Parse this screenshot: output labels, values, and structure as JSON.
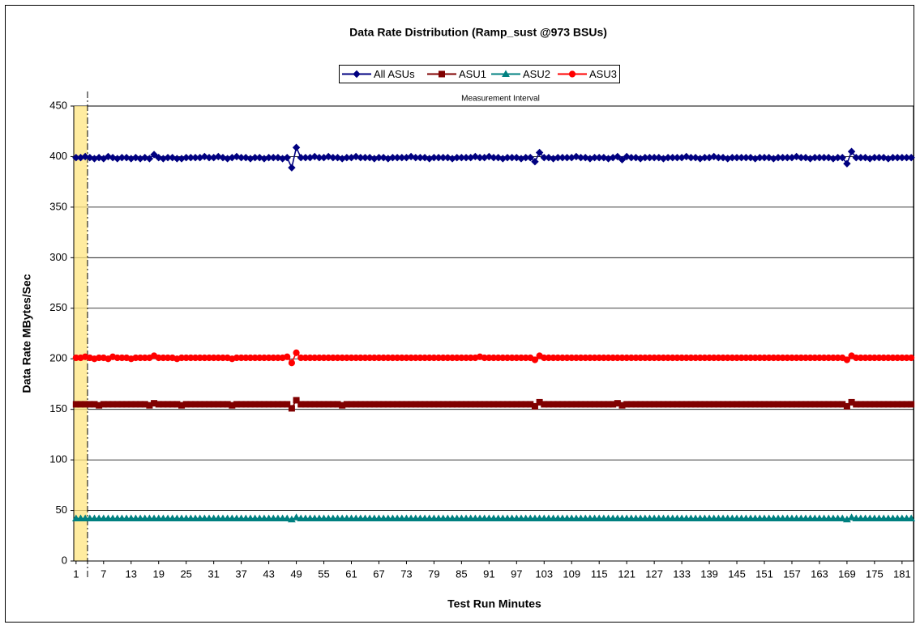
{
  "chart_data": {
    "type": "line",
    "title": "Data Rate Distribution (Ramp_sust @973 BSUs)",
    "x_label": "Test Run Minutes",
    "y_label": "Data Rate MBytes/Sec",
    "measurement_interval": {
      "label": "Measurement Interval",
      "start": 3.5
    },
    "xlim": [
      0.5,
      183.5
    ],
    "xticks": [
      1,
      7,
      13,
      19,
      25,
      31,
      37,
      43,
      49,
      55,
      61,
      67,
      73,
      79,
      85,
      91,
      97,
      103,
      109,
      115,
      121,
      127,
      133,
      139,
      145,
      151,
      157,
      163,
      169,
      175,
      181
    ],
    "ylim": [
      0,
      450
    ],
    "yticks": [
      0,
      50,
      100,
      150,
      200,
      250,
      300,
      350,
      400,
      450
    ],
    "grid": true,
    "x": [
      1,
      2,
      3,
      4,
      5,
      6,
      7,
      8,
      9,
      10,
      11,
      12,
      13,
      14,
      15,
      16,
      17,
      18,
      19,
      20,
      21,
      22,
      23,
      24,
      25,
      26,
      27,
      28,
      29,
      30,
      31,
      32,
      33,
      34,
      35,
      36,
      37,
      38,
      39,
      40,
      41,
      42,
      43,
      44,
      45,
      46,
      47,
      48,
      49,
      50,
      51,
      52,
      53,
      54,
      55,
      56,
      57,
      58,
      59,
      60,
      61,
      62,
      63,
      64,
      65,
      66,
      67,
      68,
      69,
      70,
      71,
      72,
      73,
      74,
      75,
      76,
      77,
      78,
      79,
      80,
      81,
      82,
      83,
      84,
      85,
      86,
      87,
      88,
      89,
      90,
      91,
      92,
      93,
      94,
      95,
      96,
      97,
      98,
      99,
      100,
      101,
      102,
      103,
      104,
      105,
      106,
      107,
      108,
      109,
      110,
      111,
      112,
      113,
      114,
      115,
      116,
      117,
      118,
      119,
      120,
      121,
      122,
      123,
      124,
      125,
      126,
      127,
      128,
      129,
      130,
      131,
      132,
      133,
      134,
      135,
      136,
      137,
      138,
      139,
      140,
      141,
      142,
      143,
      144,
      145,
      146,
      147,
      148,
      149,
      150,
      151,
      152,
      153,
      154,
      155,
      156,
      157,
      158,
      159,
      160,
      161,
      162,
      163,
      164,
      165,
      166,
      167,
      168,
      169,
      170,
      171,
      172,
      173,
      174,
      175,
      176,
      177,
      178,
      179,
      180,
      181,
      182,
      183
    ],
    "series": [
      {
        "name": "All ASUs",
        "color": "#000080",
        "marker": "diamond",
        "values": [
          399,
          399,
          400,
          399,
          398,
          399,
          398,
          400,
          399,
          398,
          399,
          399,
          398,
          399,
          398,
          399,
          398,
          402,
          399,
          398,
          399,
          399,
          398,
          398,
          399,
          399,
          399,
          399,
          400,
          399,
          399,
          400,
          399,
          398,
          399,
          400,
          399,
          399,
          398,
          399,
          399,
          398,
          399,
          399,
          399,
          398,
          399,
          389,
          409,
          399,
          399,
          399,
          400,
          399,
          399,
          400,
          399,
          399,
          398,
          399,
          399,
          400,
          399,
          399,
          399,
          398,
          399,
          399,
          398,
          399,
          399,
          399,
          399,
          400,
          399,
          399,
          399,
          398,
          399,
          399,
          399,
          399,
          398,
          399,
          399,
          399,
          399,
          400,
          399,
          399,
          400,
          399,
          399,
          398,
          399,
          399,
          399,
          398,
          399,
          399,
          395,
          404,
          399,
          399,
          398,
          399,
          399,
          399,
          399,
          400,
          399,
          399,
          398,
          399,
          399,
          399,
          398,
          399,
          400,
          397,
          400,
          399,
          399,
          398,
          399,
          399,
          399,
          399,
          398,
          399,
          399,
          399,
          399,
          400,
          399,
          399,
          398,
          399,
          399,
          400,
          399,
          399,
          398,
          399,
          399,
          399,
          399,
          399,
          398,
          399,
          399,
          399,
          398,
          399,
          399,
          399,
          399,
          400,
          399,
          399,
          398,
          399,
          399,
          399,
          399,
          398,
          399,
          399,
          393,
          405,
          399,
          399,
          399,
          398,
          399,
          399,
          399,
          398,
          399,
          399,
          399,
          399,
          399
        ]
      },
      {
        "name": "ASU1",
        "color": "#800000",
        "marker": "square",
        "values": [
          155,
          155,
          155,
          155,
          155,
          154,
          155,
          155,
          155,
          155,
          155,
          155,
          155,
          155,
          155,
          155,
          154,
          156,
          155,
          155,
          155,
          155,
          155,
          154,
          155,
          155,
          155,
          155,
          155,
          155,
          155,
          155,
          155,
          155,
          154,
          155,
          155,
          155,
          155,
          155,
          155,
          155,
          155,
          155,
          155,
          155,
          155,
          151,
          159,
          155,
          155,
          155,
          155,
          155,
          155,
          155,
          155,
          155,
          154,
          155,
          155,
          155,
          155,
          155,
          155,
          155,
          155,
          155,
          155,
          155,
          155,
          155,
          155,
          155,
          155,
          155,
          155,
          155,
          155,
          155,
          155,
          155,
          155,
          155,
          155,
          155,
          155,
          155,
          155,
          155,
          155,
          155,
          155,
          155,
          155,
          155,
          155,
          155,
          155,
          155,
          153,
          157,
          155,
          155,
          155,
          155,
          155,
          155,
          155,
          155,
          155,
          155,
          155,
          155,
          155,
          155,
          155,
          155,
          156,
          154,
          155,
          155,
          155,
          155,
          155,
          155,
          155,
          155,
          155,
          155,
          155,
          155,
          155,
          155,
          155,
          155,
          155,
          155,
          155,
          155,
          155,
          155,
          155,
          155,
          155,
          155,
          155,
          155,
          155,
          155,
          155,
          155,
          155,
          155,
          155,
          155,
          155,
          155,
          155,
          155,
          155,
          155,
          155,
          155,
          155,
          155,
          155,
          155,
          153,
          157,
          155,
          155,
          155,
          155,
          155,
          155,
          155,
          155,
          155,
          155,
          155,
          155,
          155
        ]
      },
      {
        "name": "ASU2",
        "color": "#008080",
        "marker": "triangle",
        "values": [
          42,
          42,
          42,
          42,
          42,
          42,
          42,
          42,
          42,
          42,
          42,
          42,
          42,
          42,
          42,
          42,
          42,
          42,
          42,
          42,
          42,
          42,
          42,
          42,
          42,
          42,
          42,
          42,
          42,
          42,
          42,
          42,
          42,
          42,
          42,
          42,
          42,
          42,
          42,
          42,
          42,
          42,
          42,
          42,
          42,
          42,
          42,
          41,
          43,
          42,
          42,
          42,
          42,
          42,
          42,
          42,
          42,
          42,
          42,
          42,
          42,
          42,
          42,
          42,
          42,
          42,
          42,
          42,
          42,
          42,
          42,
          42,
          42,
          42,
          42,
          42,
          42,
          42,
          42,
          42,
          42,
          42,
          42,
          42,
          42,
          42,
          42,
          42,
          42,
          42,
          42,
          42,
          42,
          42,
          42,
          42,
          42,
          42,
          42,
          42,
          42,
          42,
          42,
          42,
          42,
          42,
          42,
          42,
          42,
          42,
          42,
          42,
          42,
          42,
          42,
          42,
          42,
          42,
          42,
          42,
          42,
          42,
          42,
          42,
          42,
          42,
          42,
          42,
          42,
          42,
          42,
          42,
          42,
          42,
          42,
          42,
          42,
          42,
          42,
          42,
          42,
          42,
          42,
          42,
          42,
          42,
          42,
          42,
          42,
          42,
          42,
          42,
          42,
          42,
          42,
          42,
          42,
          42,
          42,
          42,
          42,
          42,
          42,
          42,
          42,
          42,
          42,
          42,
          41,
          43,
          42,
          42,
          42,
          42,
          42,
          42,
          42,
          42,
          42,
          42,
          42,
          42,
          42
        ]
      },
      {
        "name": "ASU3",
        "color": "#ff0000",
        "marker": "circle",
        "values": [
          201,
          201,
          202,
          201,
          200,
          201,
          201,
          200,
          202,
          201,
          201,
          201,
          200,
          201,
          201,
          201,
          201,
          203,
          201,
          201,
          201,
          201,
          200,
          201,
          201,
          201,
          201,
          201,
          201,
          201,
          201,
          201,
          201,
          201,
          200,
          201,
          201,
          201,
          201,
          201,
          201,
          201,
          201,
          201,
          201,
          201,
          202,
          196,
          206,
          201,
          201,
          201,
          201,
          201,
          201,
          201,
          201,
          201,
          201,
          201,
          201,
          201,
          201,
          201,
          201,
          201,
          201,
          201,
          201,
          201,
          201,
          201,
          201,
          201,
          201,
          201,
          201,
          201,
          201,
          201,
          201,
          201,
          201,
          201,
          201,
          201,
          201,
          201,
          202,
          201,
          201,
          201,
          201,
          201,
          201,
          201,
          201,
          201,
          201,
          201,
          199,
          203,
          201,
          201,
          201,
          201,
          201,
          201,
          201,
          201,
          201,
          201,
          201,
          201,
          201,
          201,
          201,
          201,
          201,
          201,
          201,
          201,
          201,
          201,
          201,
          201,
          201,
          201,
          201,
          201,
          201,
          201,
          201,
          201,
          201,
          201,
          201,
          201,
          201,
          201,
          201,
          201,
          201,
          201,
          201,
          201,
          201,
          201,
          201,
          201,
          201,
          201,
          201,
          201,
          201,
          201,
          201,
          201,
          201,
          201,
          201,
          201,
          201,
          201,
          201,
          201,
          201,
          201,
          199,
          203,
          201,
          201,
          201,
          201,
          201,
          201,
          201,
          201,
          201,
          201,
          201,
          201,
          201
        ]
      }
    ]
  }
}
